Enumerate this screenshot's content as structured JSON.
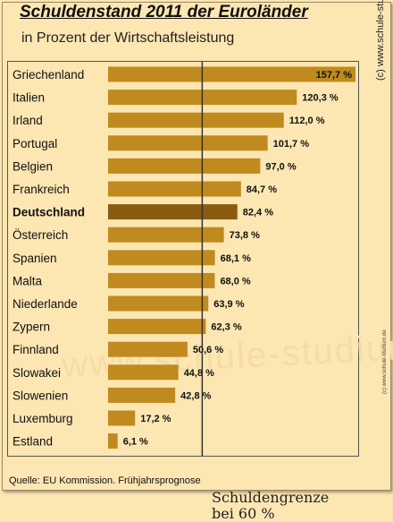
{
  "title": "Schuldenstand 2011  der Euroländer",
  "subtitle": "in Prozent der Wirtschaftsleistung",
  "source": "Quelle: EU Kommission. Frühjahrsprognose",
  "credit": "(c)  www.schule-studium.de",
  "credit_small": "(c) www.schule-studium.de",
  "watermark": "www.schule-studium.de",
  "limit_note_line1": "Schuldengrenze",
  "limit_note_line2": "bei 60 %",
  "colors": {
    "bar": "#C08A1E",
    "highlight_bar": "#8A5A10",
    "background": "#FCE6B2"
  },
  "chart_data": {
    "type": "bar",
    "orientation": "horizontal",
    "title": "Schuldenstand 2011  der Euroländer",
    "subtitle": "in Prozent der Wirtschaftsleistung",
    "categories": [
      "Griechenland",
      "Italien",
      "Irland",
      "Portugal",
      "Belgien",
      "Frankreich",
      "Deutschland",
      "Österreich",
      "Spanien",
      "Malta",
      "Niederlande",
      "Zypern",
      "Finnland",
      "Slowakei",
      "Slowenien",
      "Luxemburg",
      "Estland"
    ],
    "values": [
      157.7,
      120.3,
      112.0,
      101.7,
      97.0,
      84.7,
      82.4,
      73.8,
      68.1,
      68.0,
      63.9,
      62.3,
      50.6,
      44.8,
      42.8,
      17.2,
      6.1
    ],
    "labels": [
      "157,7 %",
      "120,3 %",
      "112,0 %",
      "101,7 %",
      "97,0 %",
      "84,7 %",
      "82,4 %",
      "73,8 %",
      "68,1 %",
      "68,0 %",
      "63,9 %",
      "62,3 %",
      "50,6 %",
      "44,8 %",
      "42,8 %",
      "17,2 %",
      "6,1 %"
    ],
    "highlight": "Deutschland",
    "reference_line": 60,
    "xlim": [
      0,
      157.7
    ],
    "grid": false,
    "legend": "none"
  }
}
